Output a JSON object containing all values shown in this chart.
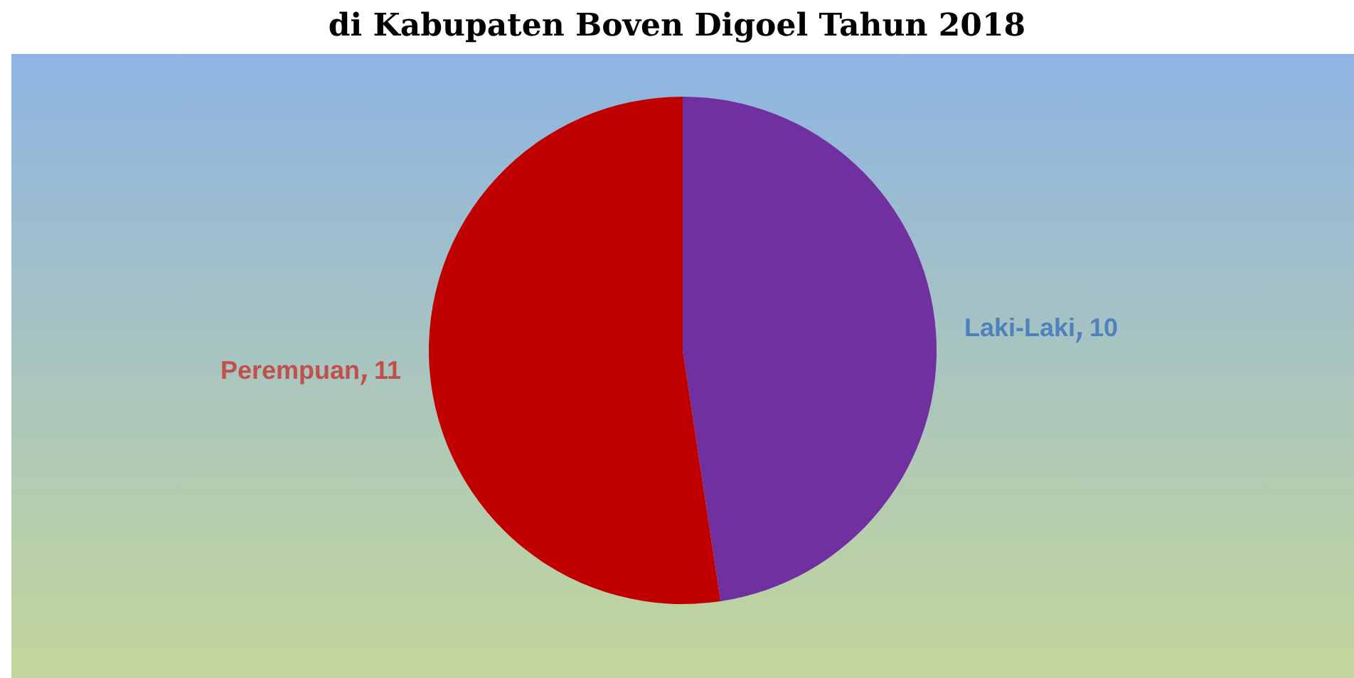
{
  "chart_data": {
    "type": "pie",
    "title": "di Kabupaten Boven Digoel Tahun 2018",
    "categories": [
      "Laki-Laki",
      "Perempuan"
    ],
    "values": [
      10,
      11
    ],
    "colors": [
      "#7030a0",
      "#c00000"
    ],
    "data_labels": true,
    "legend": false
  }
}
